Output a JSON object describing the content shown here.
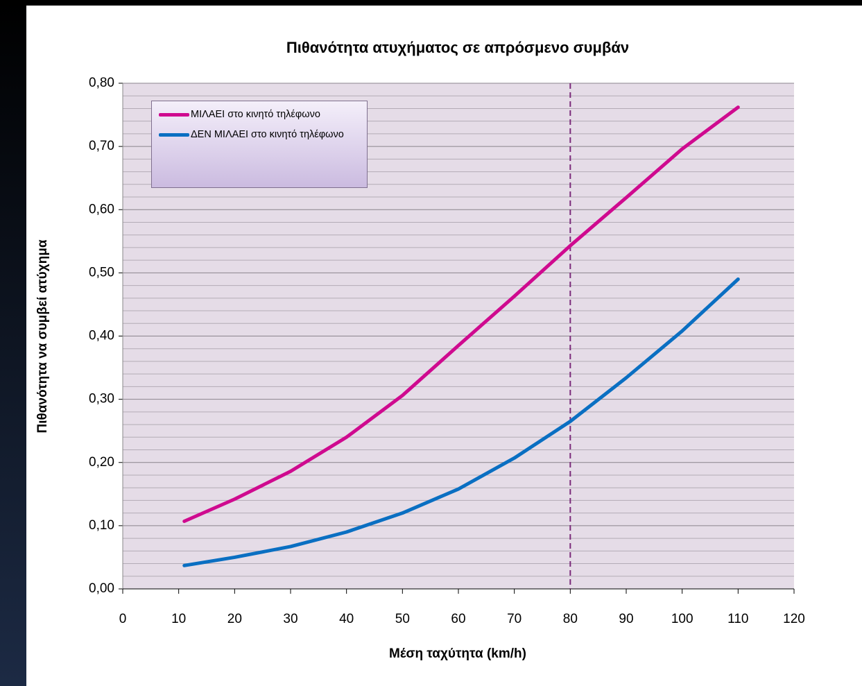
{
  "chart_data": {
    "type": "line",
    "title": "Πιθανότητα ατυχήματος σε απρόσμενο συμβάν",
    "x_label": "Μέση ταχύτητα (km/h)",
    "y_label": "Πιθανότητα να συμβεί ατύχημα",
    "x": [
      11,
      20,
      30,
      40,
      50,
      60,
      70,
      80,
      90,
      100,
      110
    ],
    "series": [
      {
        "name": "ΜΙΛΑΕΙ στο κινητό τηλέφωνο",
        "color": "#cf0a8f",
        "values": [
          0.107,
          0.142,
          0.186,
          0.24,
          0.306,
          0.385,
          0.463,
          0.543,
          0.619,
          0.696,
          0.762
        ]
      },
      {
        "name": "ΔΕΝ ΜΙΛΑΕΙ στο κινητό τηλέφωνο",
        "color": "#0a6fc2",
        "values": [
          0.037,
          0.05,
          0.067,
          0.09,
          0.12,
          0.158,
          0.207,
          0.265,
          0.334,
          0.408,
          0.49
        ]
      }
    ],
    "xlim": [
      0,
      120
    ],
    "xticks": [
      0,
      10,
      20,
      30,
      40,
      50,
      60,
      70,
      80,
      90,
      100,
      110,
      120
    ],
    "ylim": [
      0,
      0.8
    ],
    "yticks": [
      {
        "value": 0,
        "label": "0,00"
      },
      {
        "value": 0.1,
        "label": "0,10"
      },
      {
        "value": 0.2,
        "label": "0,20"
      },
      {
        "value": 0.3,
        "label": "0,30"
      },
      {
        "value": 0.4,
        "label": "0,40"
      },
      {
        "value": 0.5,
        "label": "0,50"
      },
      {
        "value": 0.6,
        "label": "0,60"
      },
      {
        "value": 0.7,
        "label": "0,70"
      },
      {
        "value": 0.8,
        "label": "0,80"
      }
    ],
    "grid": true,
    "minor_grid_divisions": 5,
    "vline": {
      "x": 80,
      "color": "#7a2a7a"
    },
    "legend": "upper left"
  }
}
